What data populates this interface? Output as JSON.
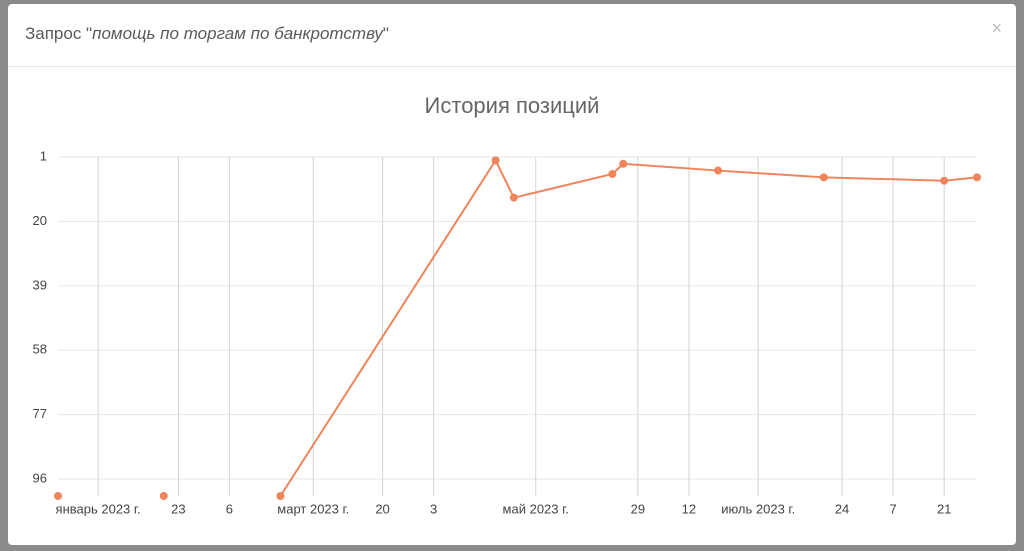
{
  "modal": {
    "title_prefix": "Запрос \"",
    "query": "помощь по торгам по банкротству",
    "title_suffix": "\"",
    "close": "×"
  },
  "chart_data": {
    "type": "line",
    "title": "История позиций",
    "y_inverted": true,
    "ylim": [
      1,
      101
    ],
    "yticks": [
      1,
      20,
      39,
      58,
      77,
      96
    ],
    "grid": true,
    "xlim": [
      "2022-12-21",
      "2023-08-30"
    ],
    "xticks": [
      {
        "value": "2023-01-01",
        "label": "январь 2023 г."
      },
      {
        "value": "2023-01-23",
        "label": "23"
      },
      {
        "value": "2023-02-06",
        "label": "6"
      },
      {
        "value": "2023-03-01",
        "label": "март 2023 г."
      },
      {
        "value": "2023-03-20",
        "label": "20"
      },
      {
        "value": "2023-04-03",
        "label": "3"
      },
      {
        "value": "2023-05-01",
        "label": "май 2023 г."
      },
      {
        "value": "2023-05-29",
        "label": "29"
      },
      {
        "value": "2023-06-12",
        "label": "12"
      },
      {
        "value": "2023-07-01",
        "label": "июль 2023 г."
      },
      {
        "value": "2023-07-24",
        "label": "24"
      },
      {
        "value": "2023-08-07",
        "label": "7"
      },
      {
        "value": "2023-08-21",
        "label": "21"
      }
    ],
    "series": [
      {
        "color": "#f0845a",
        "connected": false,
        "x": [
          "2022-12-21",
          "2023-01-19"
        ],
        "values": [
          101,
          101
        ]
      },
      {
        "color": "#f0845a",
        "connected": true,
        "x": [
          "2023-02-20",
          "2023-04-20",
          "2023-04-25",
          "2023-05-22",
          "2023-05-25",
          "2023-06-20",
          "2023-07-19",
          "2023-08-21",
          "2023-08-30"
        ],
        "values": [
          101,
          2,
          13,
          6,
          3,
          5,
          7,
          8,
          7
        ]
      }
    ]
  }
}
